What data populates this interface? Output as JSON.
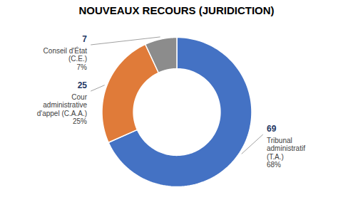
{
  "chart_data": {
    "type": "donut",
    "title": "NOUVEAUX RECOURS (JURIDICTION)",
    "categories": [
      "Tribunal\nadministratif\n(T.A.)",
      "Cour\nadministrative\nd'appel (C.A.A.)",
      "Conseil d'État\n(C.E.)"
    ],
    "values": [
      69,
      25,
      7
    ],
    "colors": [
      "#4472C4",
      "#E07B39",
      "#8C8C8C"
    ],
    "data_labels": true,
    "shares": [
      68,
      25,
      7
    ],
    "share_labels": [
      "68%",
      "25%",
      "7%"
    ]
  }
}
